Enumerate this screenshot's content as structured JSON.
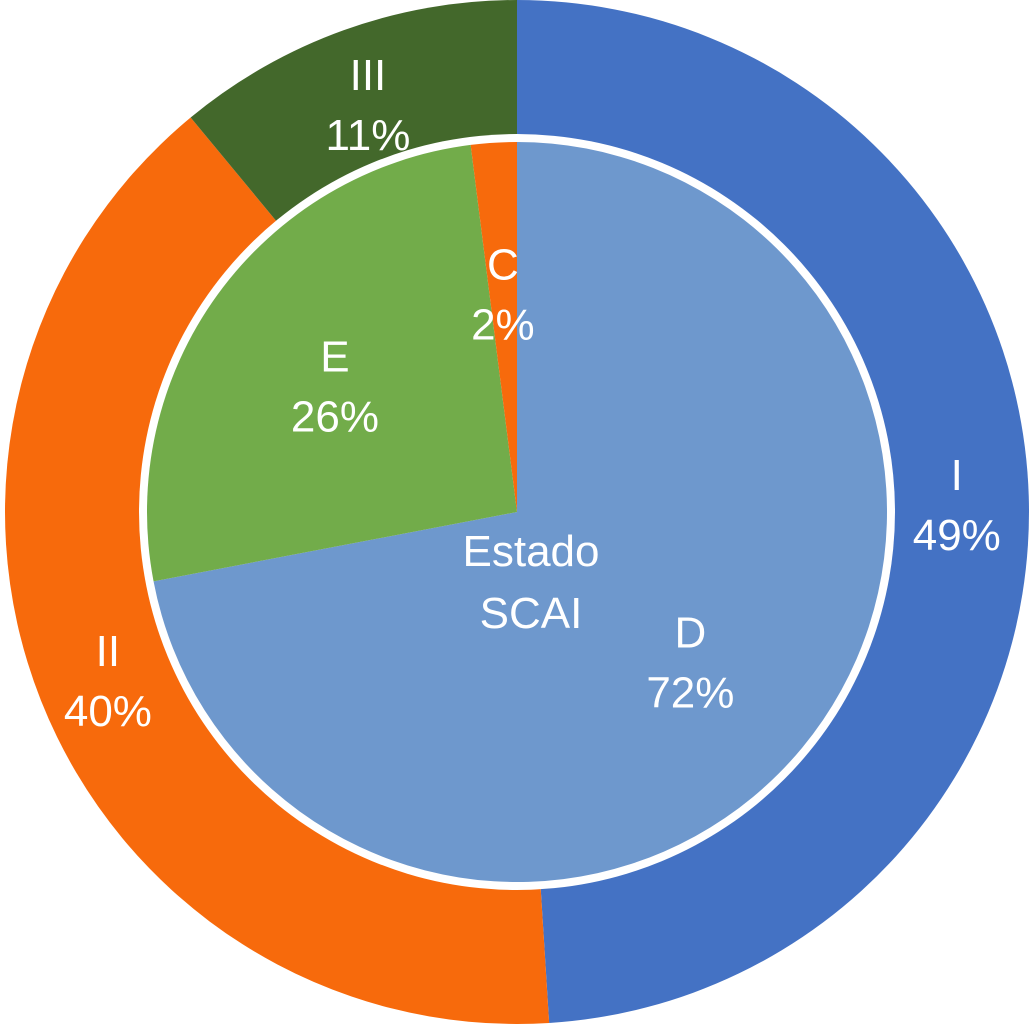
{
  "chart_data": {
    "type": "pie",
    "center_label": [
      "Estado",
      "SCAI"
    ],
    "rings": [
      {
        "ring": "outer",
        "slices": [
          {
            "label": "I",
            "value": 49,
            "value_label": "49%",
            "color": "#4472C4"
          },
          {
            "label": "II",
            "value": 40,
            "value_label": "40%",
            "color": "#F76A0C"
          },
          {
            "label": "III",
            "value": 11,
            "value_label": "11%",
            "color": "#43682B"
          }
        ]
      },
      {
        "ring": "inner",
        "slices": [
          {
            "label": "D",
            "value": 72,
            "value_label": "72%",
            "color": "#6E98CD"
          },
          {
            "label": "E",
            "value": 26,
            "value_label": "26%",
            "color": "#72AC4A"
          },
          {
            "label": "C",
            "value": 2,
            "value_label": "2%",
            "color": "#F76A0C"
          }
        ]
      }
    ]
  }
}
